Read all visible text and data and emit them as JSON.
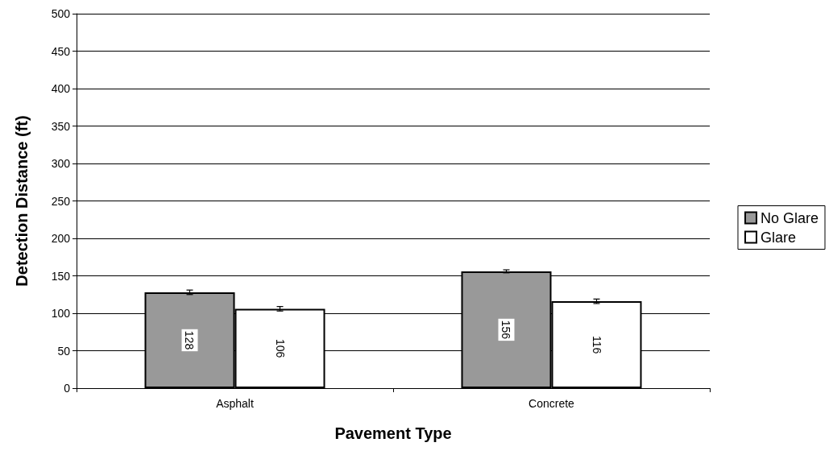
{
  "chart_data": {
    "type": "bar",
    "xlabel": "Pavement Type",
    "ylabel": "Detection Distance (ft)",
    "categories": [
      "Asphalt",
      "Concrete"
    ],
    "series": [
      {
        "name": "No Glare",
        "color": "#999999",
        "values": [
          128,
          156
        ],
        "errors": [
          3,
          2
        ]
      },
      {
        "name": "Glare",
        "color": "#ffffff",
        "values": [
          106,
          116
        ],
        "errors": [
          3,
          3
        ]
      }
    ],
    "ylim": [
      0,
      500
    ],
    "yticks": [
      0,
      50,
      100,
      150,
      200,
      250,
      300,
      350,
      400,
      450,
      500
    ],
    "grid": "y",
    "legend": "right",
    "data_labels": true
  }
}
